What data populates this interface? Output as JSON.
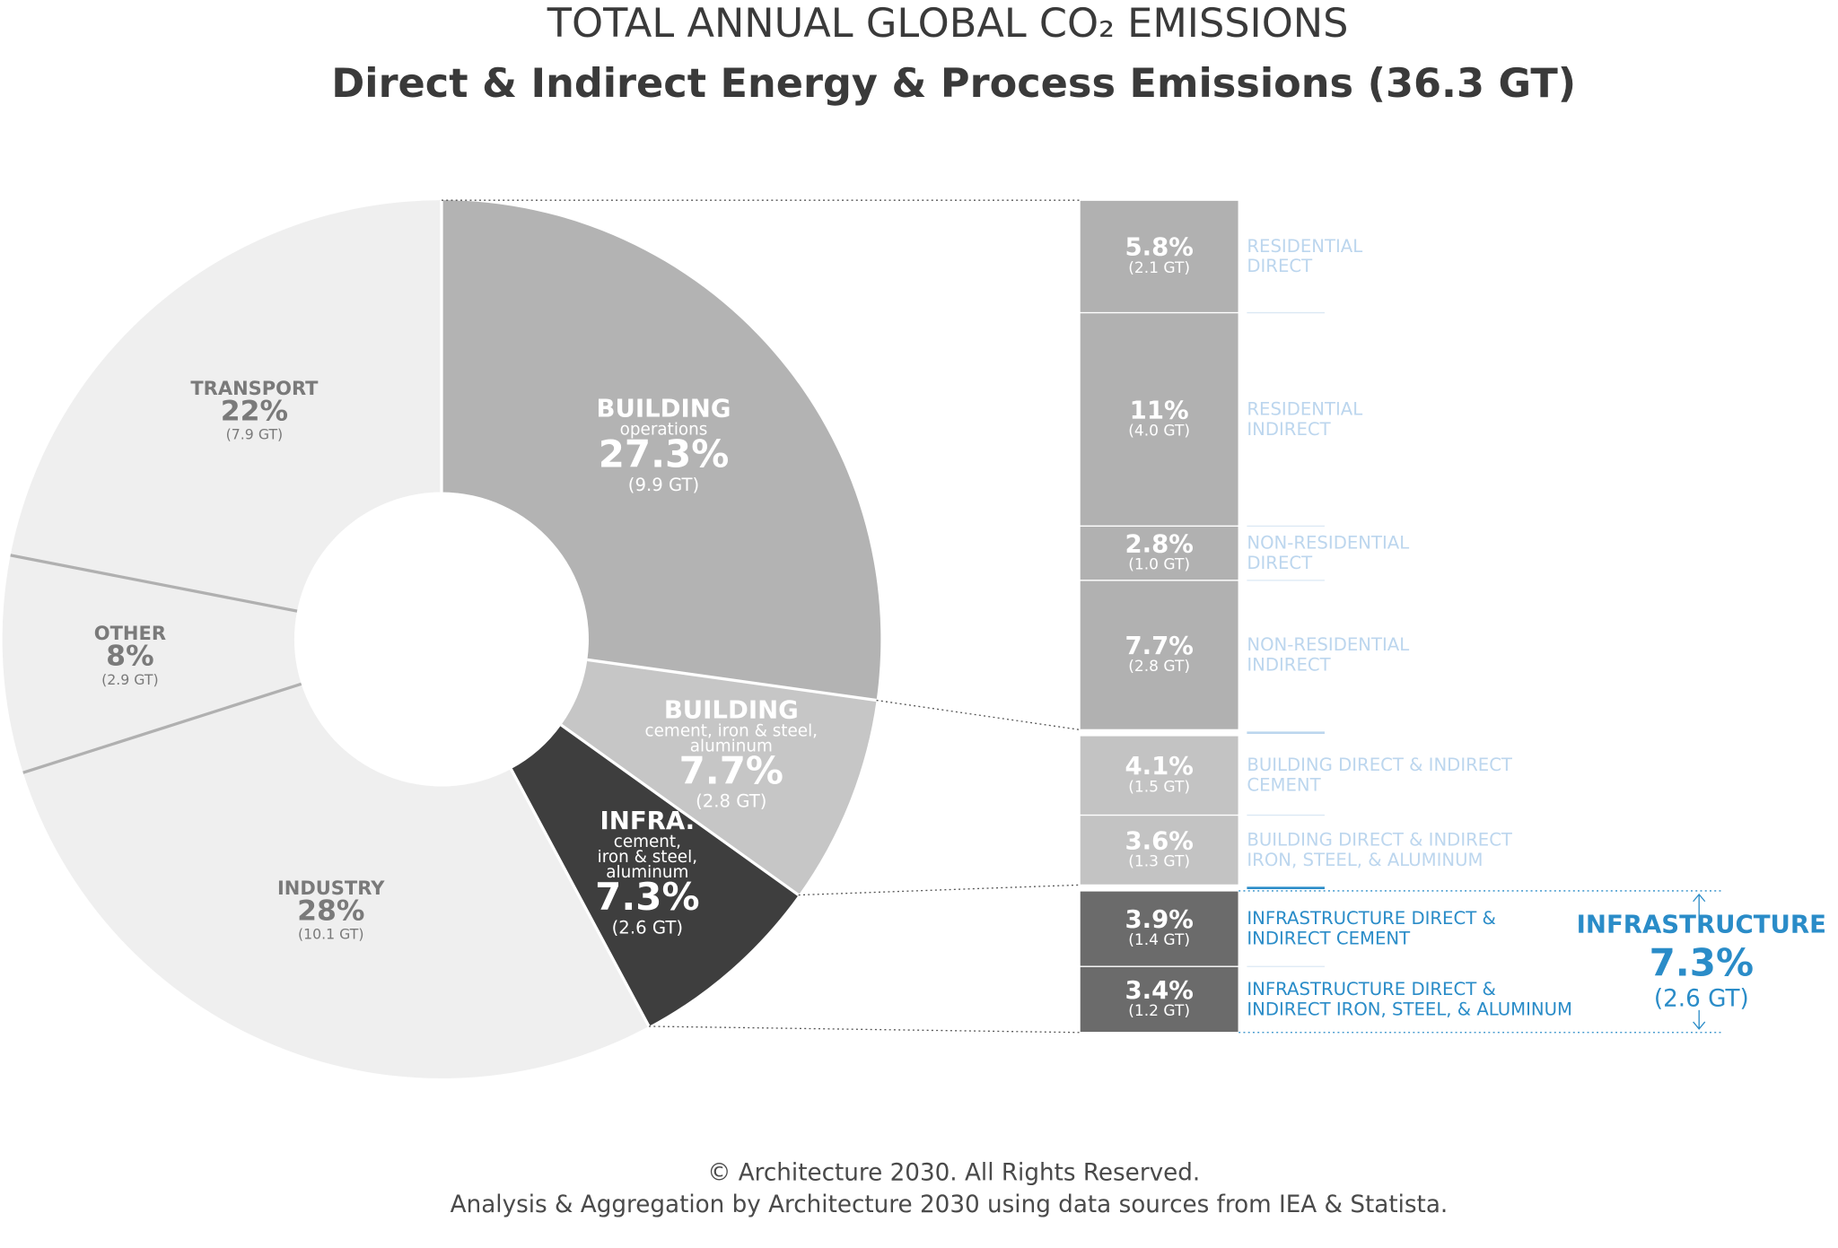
{
  "header": {
    "title": "TOTAL ANNUAL GLOBAL CO₂ EMISSIONS",
    "subtitle": "Direct & Indirect Energy & Process Emissions (36.3 GT)"
  },
  "chart_data": [
    {
      "type": "donut",
      "categories": [
        "BUILDING",
        "BUILDING",
        "INFRA.",
        "INDUSTRY",
        "OTHER",
        "TRANSPORT"
      ],
      "sublabels": [
        [
          "operations"
        ],
        [
          "cement, iron & steel,",
          "aluminum"
        ],
        [
          "cement,",
          "iron & steel,",
          "aluminum"
        ],
        [],
        [],
        []
      ],
      "values": [
        27.3,
        7.7,
        7.3,
        28,
        8,
        22
      ],
      "value_labels": [
        "27.3%",
        "7.7%",
        "7.3%",
        "28%",
        "8%",
        "22%"
      ],
      "gt_labels": [
        "(9.9 GT)",
        "(2.8 GT)",
        "(2.6 GT)",
        "(10.1 GT)",
        "(2.9 GT)",
        "(7.9 GT)"
      ],
      "colors": [
        "#b3b3b3",
        "#c6c6c6",
        "#3e3e3e",
        "#efefef",
        "#efefef",
        "#efefef"
      ],
      "edge_colors": [
        "#ffffff",
        "#ffffff",
        "#ffffff",
        "#ffffff",
        "#b0b0b0",
        "#b0b0b0"
      ],
      "label_colors": [
        "#ffffff",
        "#ffffff",
        "#ffffff",
        "#7a7a7a",
        "#7a7a7a",
        "#7a7a7a"
      ]
    },
    {
      "type": "stacked-column",
      "groups": [
        {
          "color": "#b1b1b1",
          "label_color": "#bcd6ee",
          "categories": [
            [
              "RESIDENTIAL",
              "DIRECT"
            ],
            [
              "RESIDENTIAL",
              "INDIRECT"
            ],
            [
              "NON-RESIDENTIAL",
              "DIRECT"
            ],
            [
              "NON-RESIDENTIAL",
              "INDIRECT"
            ]
          ],
          "values": [
            5.8,
            11,
            2.8,
            7.7
          ],
          "value_labels": [
            "5.8%",
            "11%",
            "2.8%",
            "7.7%"
          ],
          "gt_labels": [
            "(2.1 GT)",
            "(4.0 GT)",
            "(1.0 GT)",
            "(2.8 GT)"
          ]
        },
        {
          "color": "#c3c3c3",
          "label_color": "#bcd6ee",
          "categories": [
            [
              "BUILDING DIRECT & INDIRECT",
              "CEMENT"
            ],
            [
              "BUILDING DIRECT & INDIRECT",
              "IRON, STEEL, & ALUMINUM"
            ]
          ],
          "values": [
            4.1,
            3.6
          ],
          "value_labels": [
            "4.1%",
            "3.6%"
          ],
          "gt_labels": [
            "(1.5 GT)",
            "(1.3 GT)"
          ]
        },
        {
          "color": "#6b6b6b",
          "label_color": "#2a8cc8",
          "categories": [
            [
              "INFRASTRUCTURE DIRECT &",
              "INDIRECT CEMENT"
            ],
            [
              "INFRASTRUCTURE DIRECT &",
              "INDIRECT IRON, STEEL, & ALUMINUM"
            ]
          ],
          "values": [
            3.9,
            3.4
          ],
          "value_labels": [
            "3.9%",
            "3.4%"
          ],
          "gt_labels": [
            "(1.4 GT)",
            "(1.2 GT)"
          ]
        }
      ],
      "annotation": {
        "title": "INFRASTRUCTURE",
        "value_label": "7.3%",
        "gt_label": "(2.6 GT)"
      }
    }
  ],
  "footer": [
    "© Architecture 2030. All Rights Reserved.",
    "Analysis & Aggregation by Architecture 2030 using data sources from IEA & Statista."
  ]
}
